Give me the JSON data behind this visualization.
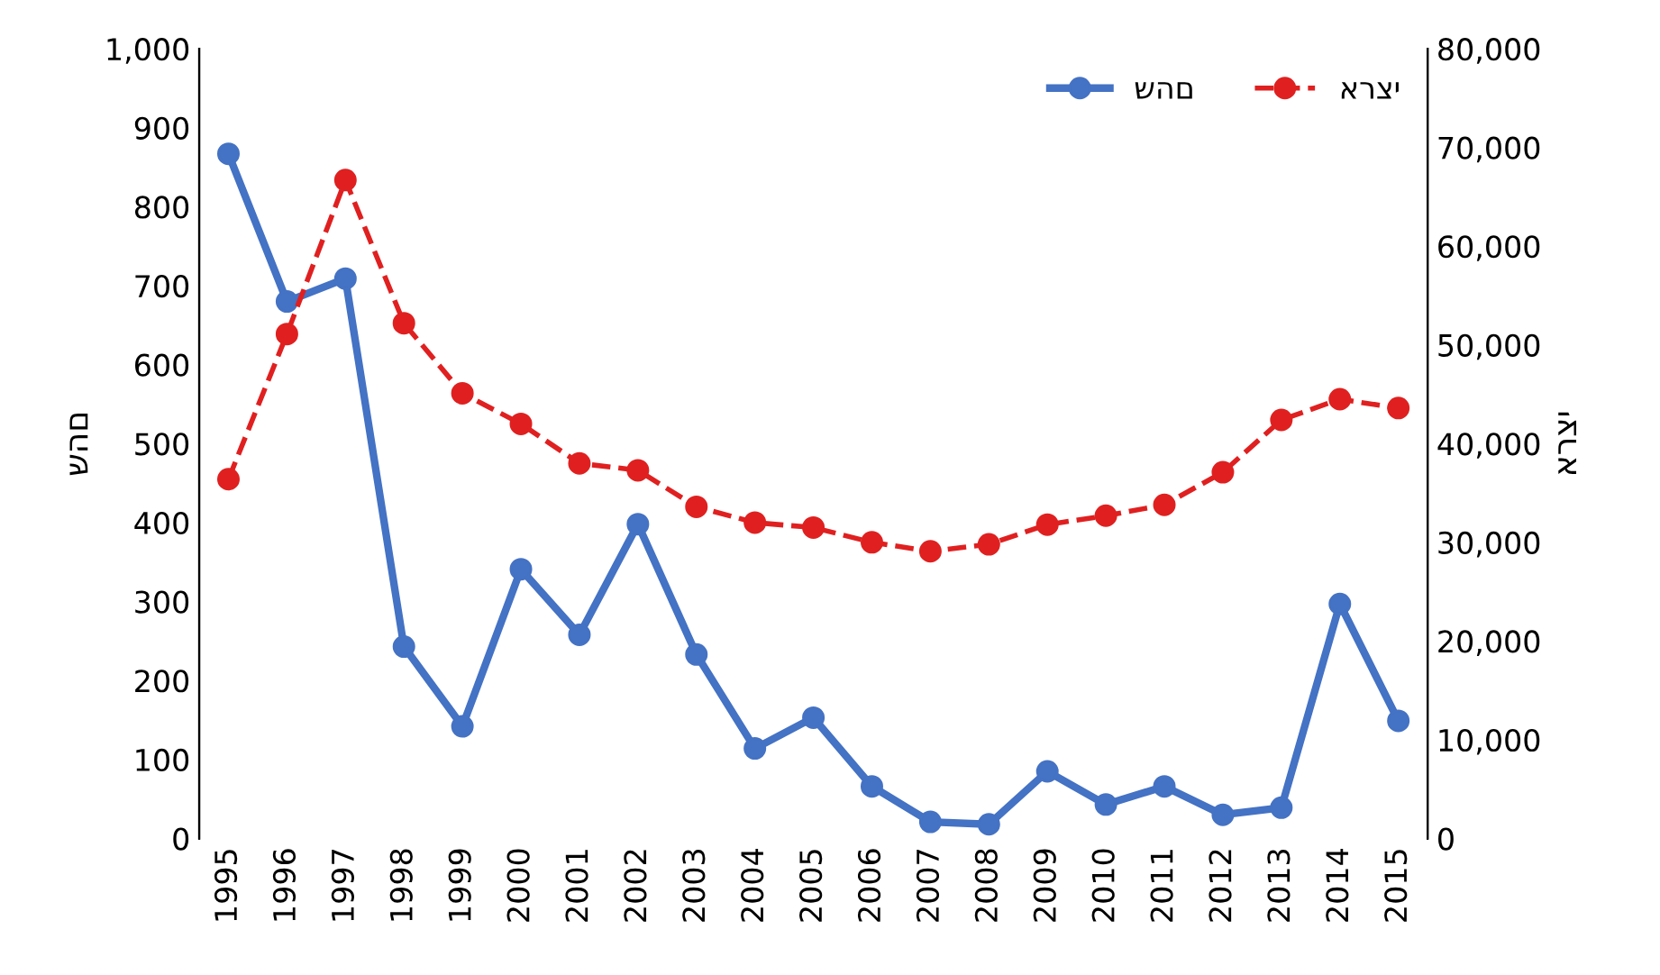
{
  "chart_data": {
    "type": "line",
    "ylabel": "שהם",
    "y2label": "ארצי",
    "categories": [
      "1995",
      "1996",
      "1997",
      "1998",
      "1999",
      "2000",
      "2001",
      "2002",
      "2003",
      "2004",
      "2005",
      "2006",
      "2007",
      "2008",
      "2009",
      "2010",
      "2011",
      "2012",
      "2013",
      "2014",
      "2015"
    ],
    "series": [
      {
        "name": "שהם",
        "color": "#4472c4",
        "line_style": "solid",
        "values": [
          867,
          680,
          709,
          243,
          142,
          341,
          258,
          398,
          233,
          114,
          153,
          66,
          21,
          18,
          85,
          43,
          66,
          30,
          39,
          297,
          149
        ]
      },
      {
        "name": "ארצי",
        "color": "#e02020",
        "line_style": "dashed",
        "axis": "y2",
        "values": [
          36400,
          51100,
          66700,
          52200,
          45100,
          42000,
          38000,
          37300,
          33600,
          32000,
          31500,
          30000,
          29100,
          29800,
          31800,
          32700,
          33800,
          37100,
          42400,
          44500,
          43600
        ]
      }
    ],
    "ylim": [
      0,
      1000
    ],
    "yticks": [
      0,
      100,
      200,
      300,
      400,
      500,
      600,
      700,
      800,
      900,
      {
        "value": 1000,
        "label": "1,000"
      }
    ],
    "y2lim": [
      0,
      80000
    ],
    "y2ticks": [
      0,
      {
        "value": 10000,
        "label": "10,000"
      },
      {
        "value": 20000,
        "label": "20,000"
      },
      {
        "value": 30000,
        "label": "30,000"
      },
      {
        "value": 40000,
        "label": "40,000"
      },
      {
        "value": 50000,
        "label": "50,000"
      },
      {
        "value": 60000,
        "label": "60,000"
      },
      {
        "value": 70000,
        "label": "70,000"
      },
      {
        "value": 80000,
        "label": "80,000"
      }
    ],
    "marker": "circle",
    "grid": false,
    "legend": "top right"
  }
}
